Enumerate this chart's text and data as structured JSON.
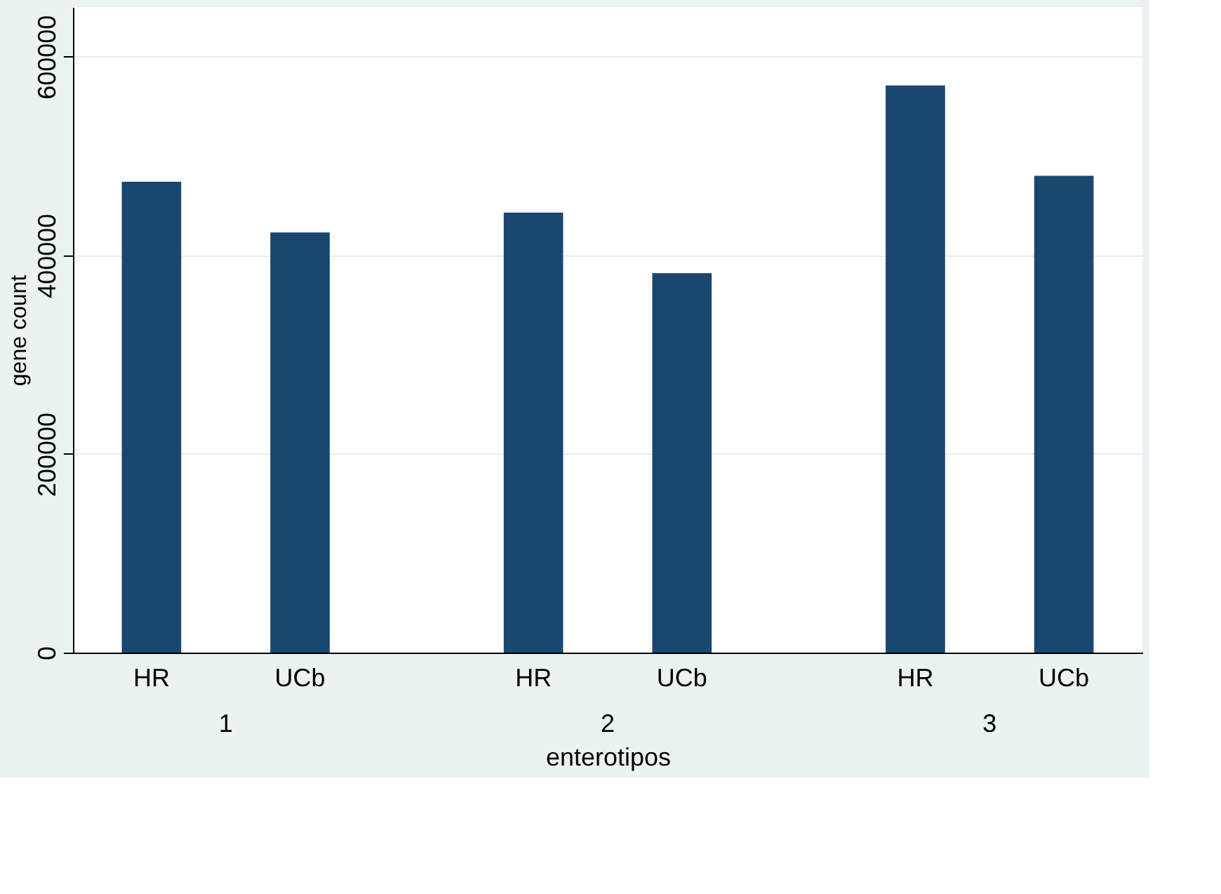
{
  "chart_data": {
    "type": "bar",
    "xlabel": "enterotipos",
    "ylabel": "gene count",
    "categories": [
      "1",
      "2",
      "3"
    ],
    "series": [
      {
        "name": "HR",
        "color": "#1a476f",
        "values": [
          474000,
          443000,
          571000
        ]
      },
      {
        "name": "UCb",
        "color": "#1a476f",
        "values": [
          423000,
          382000,
          480000
        ]
      }
    ],
    "ylim": [
      0,
      650000
    ],
    "yticks": [
      0,
      200000,
      400000,
      600000
    ],
    "grid": "y",
    "legend": false
  }
}
